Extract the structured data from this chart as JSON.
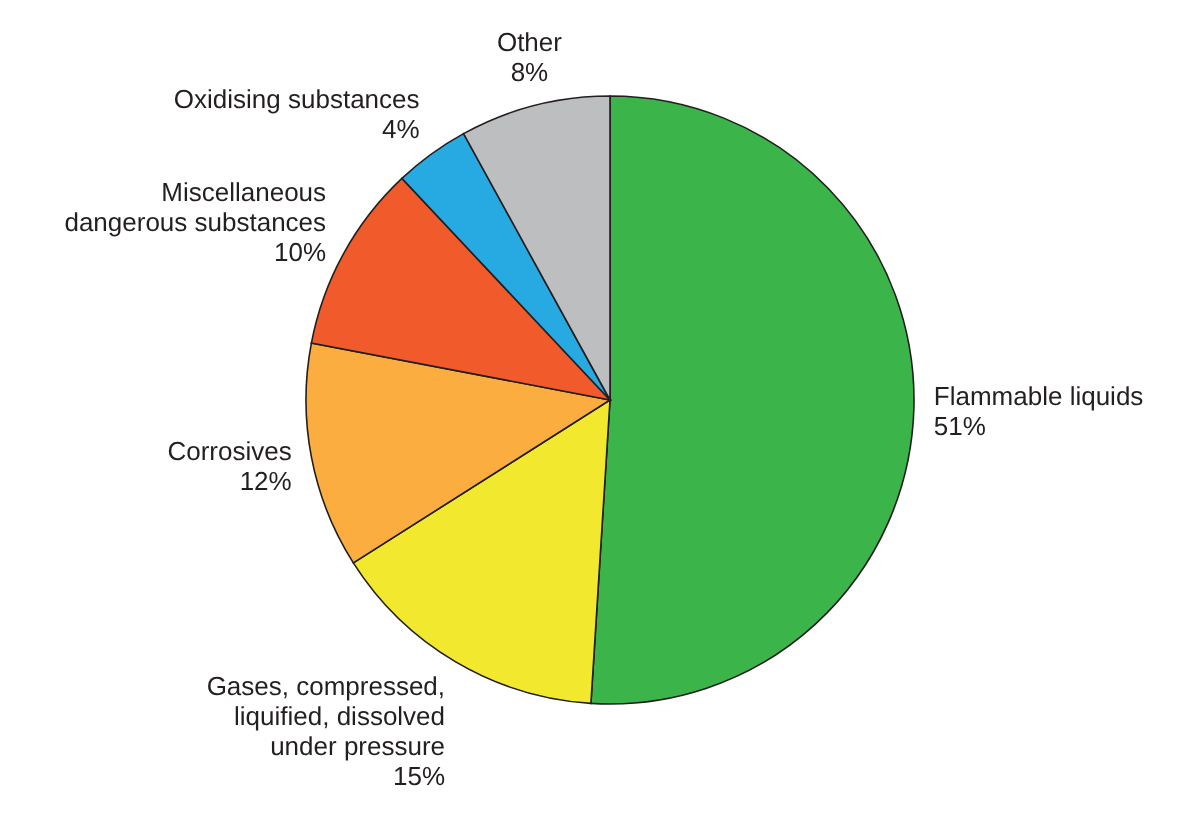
{
  "chart_data": {
    "type": "pie",
    "categories": [
      "Flammable liquids",
      "Gases, compressed, liquified, dissolved under pressure",
      "Corrosives",
      "Miscellaneous dangerous substances",
      "Oxidising substances",
      "Other"
    ],
    "values": [
      51,
      15,
      12,
      10,
      4,
      8
    ],
    "value_labels": [
      "51%",
      "15%",
      "12%",
      "10%",
      "4%",
      "8%"
    ],
    "colors": [
      "#3bb54a",
      "#f2e92f",
      "#fbad40",
      "#f15a2b",
      "#27aae1",
      "#bcbec0"
    ]
  }
}
